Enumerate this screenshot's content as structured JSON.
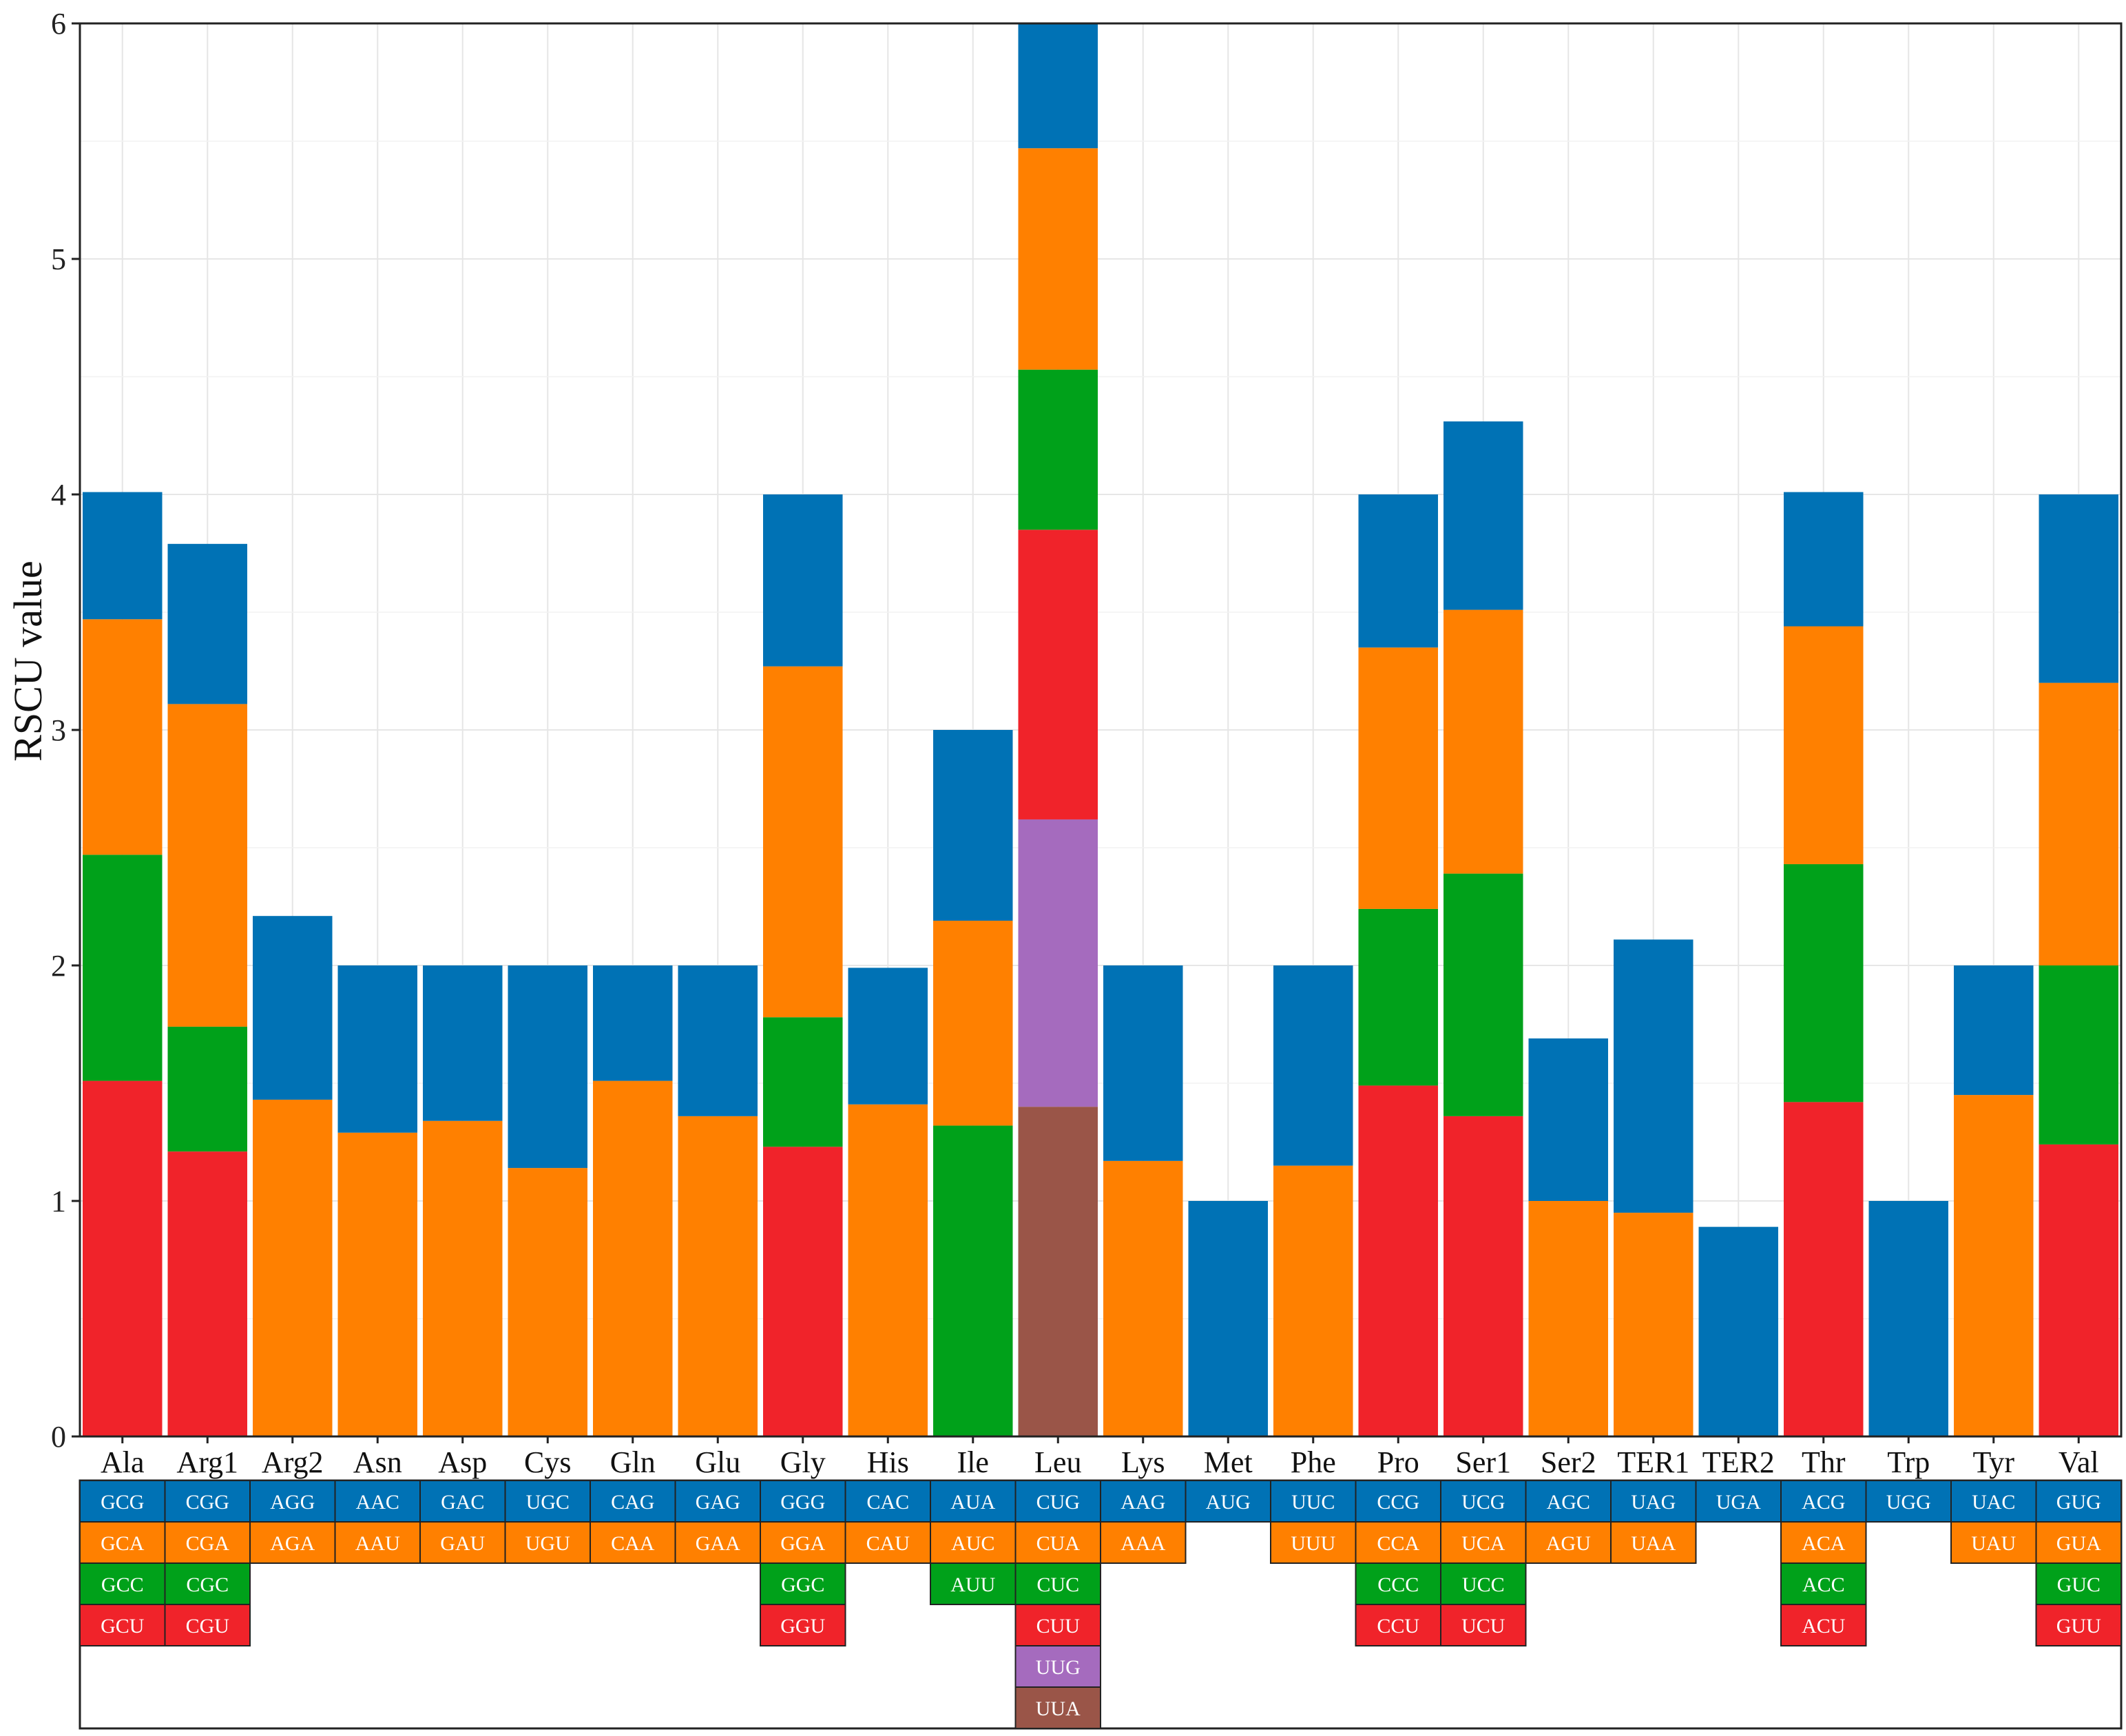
{
  "chart_data": {
    "type": "bar",
    "stacked": true,
    "title": "",
    "xlabel": "",
    "ylabel": "RSCU value",
    "ylim": [
      0,
      6
    ],
    "yticks": [
      "0",
      "1",
      "2",
      "3",
      "4",
      "5",
      "6"
    ],
    "grid": true,
    "stack_colors": [
      "#F0232A",
      "#00A11A",
      "#FF8000",
      "#0072B5"
    ],
    "special_colors": {
      "UUG": "#A56BBE",
      "UUA": "#9A5548"
    },
    "categories": [
      "Ala",
      "Arg1",
      "Arg2",
      "Asn",
      "Asp",
      "Cys",
      "Gln",
      "Glu",
      "Gly",
      "His",
      "Ile",
      "Leu",
      "Lys",
      "Met",
      "Phe",
      "Pro",
      "Ser1",
      "Ser2",
      "TER1",
      "TER2",
      "Thr",
      "Trp",
      "Tyr",
      "Val"
    ],
    "bars": [
      {
        "category": "Ala",
        "segments": [
          {
            "codon": "GCU",
            "value": 1.51,
            "color": "#F0232A"
          },
          {
            "codon": "GCC",
            "value": 0.96,
            "color": "#00A11A"
          },
          {
            "codon": "GCA",
            "value": 1.0,
            "color": "#FF8000"
          },
          {
            "codon": "GCG",
            "value": 0.54,
            "color": "#0072B5"
          }
        ]
      },
      {
        "category": "Arg1",
        "segments": [
          {
            "codon": "CGU",
            "value": 1.21,
            "color": "#F0232A"
          },
          {
            "codon": "CGC",
            "value": 0.53,
            "color": "#00A11A"
          },
          {
            "codon": "CGA",
            "value": 1.37,
            "color": "#FF8000"
          },
          {
            "codon": "CGG",
            "value": 0.68,
            "color": "#0072B5"
          }
        ]
      },
      {
        "category": "Arg2",
        "segments": [
          {
            "codon": "AGA",
            "value": 1.43,
            "color": "#FF8000"
          },
          {
            "codon": "AGG",
            "value": 0.78,
            "color": "#0072B5"
          }
        ]
      },
      {
        "category": "Asn",
        "segments": [
          {
            "codon": "AAU",
            "value": 1.29,
            "color": "#FF8000"
          },
          {
            "codon": "AAC",
            "value": 0.71,
            "color": "#0072B5"
          }
        ]
      },
      {
        "category": "Asp",
        "segments": [
          {
            "codon": "GAU",
            "value": 1.34,
            "color": "#FF8000"
          },
          {
            "codon": "GAC",
            "value": 0.66,
            "color": "#0072B5"
          }
        ]
      },
      {
        "category": "Cys",
        "segments": [
          {
            "codon": "UGU",
            "value": 1.14,
            "color": "#FF8000"
          },
          {
            "codon": "UGC",
            "value": 0.86,
            "color": "#0072B5"
          }
        ]
      },
      {
        "category": "Gln",
        "segments": [
          {
            "codon": "CAA",
            "value": 1.51,
            "color": "#FF8000"
          },
          {
            "codon": "CAG",
            "value": 0.49,
            "color": "#0072B5"
          }
        ]
      },
      {
        "category": "Glu",
        "segments": [
          {
            "codon": "GAA",
            "value": 1.36,
            "color": "#FF8000"
          },
          {
            "codon": "GAG",
            "value": 0.64,
            "color": "#0072B5"
          }
        ]
      },
      {
        "category": "Gly",
        "segments": [
          {
            "codon": "GGU",
            "value": 1.23,
            "color": "#F0232A"
          },
          {
            "codon": "GGC",
            "value": 0.55,
            "color": "#00A11A"
          },
          {
            "codon": "GGA",
            "value": 1.49,
            "color": "#FF8000"
          },
          {
            "codon": "GGG",
            "value": 0.73,
            "color": "#0072B5"
          }
        ]
      },
      {
        "category": "His",
        "segments": [
          {
            "codon": "CAU",
            "value": 1.41,
            "color": "#FF8000"
          },
          {
            "codon": "CAC",
            "value": 0.58,
            "color": "#0072B5"
          }
        ]
      },
      {
        "category": "Ile",
        "segments": [
          {
            "codon": "AUU",
            "value": 1.32,
            "color": "#00A11A"
          },
          {
            "codon": "AUC",
            "value": 0.87,
            "color": "#FF8000"
          },
          {
            "codon": "AUA",
            "value": 0.81,
            "color": "#0072B5"
          }
        ]
      },
      {
        "category": "Leu",
        "segments": [
          {
            "codon": "UUA",
            "value": 1.4,
            "color": "#9A5548"
          },
          {
            "codon": "UUG",
            "value": 1.22,
            "color": "#A56BBE"
          },
          {
            "codon": "CUU",
            "value": 1.23,
            "color": "#F0232A"
          },
          {
            "codon": "CUC",
            "value": 0.68,
            "color": "#00A11A"
          },
          {
            "codon": "CUA",
            "value": 0.94,
            "color": "#FF8000"
          },
          {
            "codon": "CUG",
            "value": 0.53,
            "color": "#0072B5"
          }
        ]
      },
      {
        "category": "Lys",
        "segments": [
          {
            "codon": "AAA",
            "value": 1.17,
            "color": "#FF8000"
          },
          {
            "codon": "AAG",
            "value": 0.83,
            "color": "#0072B5"
          }
        ]
      },
      {
        "category": "Met",
        "segments": [
          {
            "codon": "AUG",
            "value": 1.0,
            "color": "#0072B5"
          }
        ]
      },
      {
        "category": "Phe",
        "segments": [
          {
            "codon": "UUU",
            "value": 1.15,
            "color": "#FF8000"
          },
          {
            "codon": "UUC",
            "value": 0.85,
            "color": "#0072B5"
          }
        ]
      },
      {
        "category": "Pro",
        "segments": [
          {
            "codon": "CCU",
            "value": 1.49,
            "color": "#F0232A"
          },
          {
            "codon": "CCC",
            "value": 0.75,
            "color": "#00A11A"
          },
          {
            "codon": "CCA",
            "value": 1.11,
            "color": "#FF8000"
          },
          {
            "codon": "CCG",
            "value": 0.65,
            "color": "#0072B5"
          }
        ]
      },
      {
        "category": "Ser1",
        "segments": [
          {
            "codon": "UCU",
            "value": 1.36,
            "color": "#F0232A"
          },
          {
            "codon": "UCC",
            "value": 1.03,
            "color": "#00A11A"
          },
          {
            "codon": "UCA",
            "value": 1.12,
            "color": "#FF8000"
          },
          {
            "codon": "UCG",
            "value": 0.8,
            "color": "#0072B5"
          }
        ]
      },
      {
        "category": "Ser2",
        "segments": [
          {
            "codon": "AGU",
            "value": 1.0,
            "color": "#FF8000"
          },
          {
            "codon": "AGC",
            "value": 0.69,
            "color": "#0072B5"
          }
        ]
      },
      {
        "category": "TER1",
        "segments": [
          {
            "codon": "UAA",
            "value": 0.95,
            "color": "#FF8000"
          },
          {
            "codon": "UAG",
            "value": 1.16,
            "color": "#0072B5"
          }
        ]
      },
      {
        "category": "TER2",
        "segments": [
          {
            "codon": "UGA",
            "value": 0.89,
            "color": "#0072B5"
          }
        ]
      },
      {
        "category": "Thr",
        "segments": [
          {
            "codon": "ACU",
            "value": 1.42,
            "color": "#F0232A"
          },
          {
            "codon": "ACC",
            "value": 1.01,
            "color": "#00A11A"
          },
          {
            "codon": "ACA",
            "value": 1.01,
            "color": "#FF8000"
          },
          {
            "codon": "ACG",
            "value": 0.57,
            "color": "#0072B5"
          }
        ]
      },
      {
        "category": "Trp",
        "segments": [
          {
            "codon": "UGG",
            "value": 1.0,
            "color": "#0072B5"
          }
        ]
      },
      {
        "category": "Tyr",
        "segments": [
          {
            "codon": "UAU",
            "value": 1.45,
            "color": "#FF8000"
          },
          {
            "codon": "UAC",
            "value": 0.55,
            "color": "#0072B5"
          }
        ]
      },
      {
        "category": "Val",
        "segments": [
          {
            "codon": "GUU",
            "value": 1.24,
            "color": "#F0232A"
          },
          {
            "codon": "GUC",
            "value": 0.76,
            "color": "#00A11A"
          },
          {
            "codon": "GUA",
            "value": 1.2,
            "color": "#FF8000"
          },
          {
            "codon": "GUG",
            "value": 0.8,
            "color": "#0072B5"
          }
        ]
      }
    ]
  }
}
